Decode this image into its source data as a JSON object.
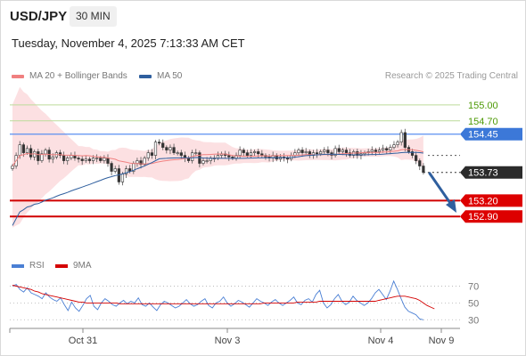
{
  "header": {
    "symbol": "USD/JPY",
    "interval": "30 MIN",
    "timestamp": "Tuesday, November 4, 2025 7:13:33 AM CET",
    "credit": "Research © 2025 Trading Central"
  },
  "legend": {
    "ma20_label": "MA 20 + Bollinger Bands",
    "ma20_color": "#f08080",
    "ma50_label": "MA 50",
    "ma50_color": "#2f5f9e"
  },
  "rsi_legend": {
    "rsi_label": "RSI",
    "rsi_color": "#4a7fd4",
    "ma_label": "9MA",
    "ma_color": "#d40000"
  },
  "chart_data": {
    "type": "candlestick",
    "x_ticks": [
      "Oct 31",
      "Nov 3",
      "Nov 4",
      "Nov 9"
    ],
    "ylim": [
      152.2,
      155.3
    ],
    "levels": [
      {
        "value": 155.0,
        "label": "155.00",
        "kind": "resistance-green",
        "color": "#4e9a06"
      },
      {
        "value": 154.7,
        "label": "154.70",
        "kind": "resistance-green",
        "color": "#4e9a06"
      },
      {
        "value": 154.45,
        "label": "154.45",
        "kind": "pivot",
        "color": "#3c78d8"
      },
      {
        "value": 153.73,
        "label": "153.73",
        "kind": "last-price",
        "color": "#2b2b2b"
      },
      {
        "value": 153.2,
        "label": "153.20",
        "kind": "support",
        "color": "#d00000"
      },
      {
        "value": 152.9,
        "label": "152.90",
        "kind": "support",
        "color": "#d00000"
      }
    ],
    "close": [
      153.85,
      154.05,
      154.25,
      154.1,
      154.18,
      154.02,
      154.12,
      153.95,
      154.08,
      154.15,
      153.98,
      154.02,
      154.1,
      154.05,
      153.95,
      154.0,
      154.05,
      154.0,
      153.98,
      153.95,
      153.98,
      153.95,
      154.0,
      154.0,
      153.95,
      154.0,
      153.9,
      153.75,
      153.8,
      153.55,
      153.7,
      153.8,
      153.75,
      153.9,
      153.95,
      153.88,
      154.0,
      154.1,
      154.05,
      154.3,
      154.28,
      154.2,
      154.15,
      154.2,
      154.1,
      154.1,
      154.05,
      154.0,
      153.95,
      154.1,
      154.1,
      153.9,
      153.95,
      153.95,
      154.0,
      154.0,
      154.05,
      154.08,
      154.05,
      154.02,
      154.0,
      154.05,
      154.15,
      154.1,
      154.05,
      154.1,
      154.12,
      154.08,
      154.05,
      154.02,
      154.0,
      154.05,
      153.98,
      154.02,
      154.0,
      153.98,
      154.05,
      154.1,
      154.15,
      154.1,
      154.12,
      154.05,
      154.1,
      154.08,
      154.12,
      154.15,
      154.1,
      154.05,
      154.18,
      154.12,
      154.15,
      154.1,
      154.05,
      154.12,
      154.05,
      154.08,
      154.1,
      154.12,
      154.15,
      154.12,
      154.15,
      154.18,
      154.15,
      154.2,
      154.25,
      154.3,
      154.48,
      154.2,
      154.12,
      154.05,
      153.95,
      153.85,
      153.73
    ],
    "rsi": {
      "levels": [
        70,
        50,
        30
      ],
      "ylim": [
        25,
        80
      ],
      "rsi": [
        70,
        72,
        66,
        63,
        68,
        62,
        60,
        58,
        55,
        62,
        57,
        54,
        52,
        56,
        48,
        41,
        51,
        44,
        40,
        47,
        55,
        59,
        46,
        42,
        50,
        55,
        52,
        48,
        46,
        50,
        53,
        49,
        52,
        50,
        56,
        48,
        46,
        50,
        45,
        41,
        48,
        52,
        50,
        47,
        44,
        46,
        50,
        54,
        49,
        46,
        48,
        52,
        55,
        47,
        44,
        50,
        52,
        57,
        50,
        46,
        49,
        53,
        51,
        48,
        45,
        50,
        55,
        52,
        50,
        47,
        51,
        54,
        50,
        47,
        50,
        53,
        57,
        50,
        48,
        53,
        55,
        51,
        60,
        65,
        50,
        44,
        48,
        55,
        60,
        52,
        48,
        51,
        58,
        53,
        50,
        47,
        50,
        55,
        62,
        66,
        60,
        54,
        64,
        76,
        66,
        55,
        45,
        40,
        38,
        36,
        31,
        30
      ],
      "ma": [
        71,
        70,
        69,
        68,
        67,
        66,
        64,
        63,
        61,
        60,
        59,
        58,
        57,
        56,
        55,
        54,
        53,
        52,
        51,
        51,
        50,
        50,
        50,
        50,
        50,
        50,
        50,
        50,
        50,
        49,
        49,
        49,
        49,
        49,
        49,
        49,
        49,
        49,
        49,
        49,
        49,
        49,
        49,
        49,
        49,
        49,
        49,
        49,
        49,
        49,
        49,
        49,
        49,
        49,
        49,
        49,
        49,
        49,
        49,
        49,
        49,
        49,
        49,
        49,
        49,
        49,
        49,
        49,
        50,
        50,
        50,
        50,
        50,
        50,
        50,
        50,
        50,
        51,
        51,
        51,
        51,
        51,
        51,
        52,
        52,
        52,
        52,
        52,
        52,
        52,
        52,
        52,
        52,
        52,
        52,
        52,
        52,
        52,
        52,
        53,
        54,
        55,
        56,
        57,
        58,
        58,
        58,
        57,
        56,
        55,
        53,
        50,
        47,
        45,
        43
      ]
    }
  }
}
